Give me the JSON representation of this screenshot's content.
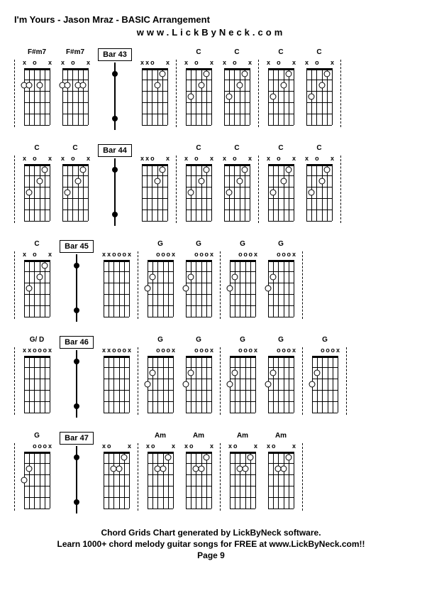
{
  "header": {
    "title": "I'm Yours - Jason Mraz - BASIC Arrangement",
    "url": "www.LickByNeck.com"
  },
  "footer": {
    "line1": "Chord Grids Chart generated by LickByNeck software.",
    "line2": "Learn 1000+ chord melody guitar songs for FREE at www.LickByNeck.com!!",
    "page": "Page 9"
  },
  "rows": [
    {
      "before": [
        {
          "name": "F#m7",
          "markers": [
            "x",
            "",
            "o",
            "",
            "",
            "x"
          ],
          "dots": [
            [
              0,
              2
            ],
            [
              1,
              2
            ],
            [
              3,
              2
            ]
          ]
        },
        {
          "name": "F#m7",
          "markers": [
            "x",
            "",
            "o",
            "",
            "",
            "x"
          ],
          "dots": [
            [
              0,
              2
            ],
            [
              1,
              2
            ],
            [
              3,
              2
            ],
            [
              4,
              2
            ]
          ]
        }
      ],
      "bar": "Bar 43",
      "after": [
        {
          "name": "",
          "markers": [
            "x",
            "x",
            "o",
            "",
            "",
            "x"
          ],
          "dots": [
            [
              3,
              2
            ],
            [
              4,
              1
            ]
          ]
        },
        {
          "name": "C",
          "markers": [
            "x",
            "",
            "o",
            "",
            "",
            "x"
          ],
          "dots": [
            [
              1,
              3
            ],
            [
              3,
              2
            ],
            [
              4,
              1
            ]
          ]
        },
        {
          "name": "C",
          "markers": [
            "x",
            "",
            "o",
            "",
            "",
            "x"
          ],
          "dots": [
            [
              1,
              3
            ],
            [
              3,
              2
            ],
            [
              4,
              1
            ]
          ]
        },
        {
          "name": "C",
          "markers": [
            "x",
            "",
            "o",
            "",
            "",
            "x"
          ],
          "dots": [
            [
              1,
              3
            ],
            [
              3,
              2
            ],
            [
              4,
              1
            ]
          ]
        },
        {
          "name": "C",
          "markers": [
            "x",
            "",
            "o",
            "",
            "",
            "x"
          ],
          "dots": [
            [
              1,
              3
            ],
            [
              3,
              2
            ],
            [
              4,
              1
            ]
          ]
        }
      ]
    },
    {
      "before": [
        {
          "name": "C",
          "markers": [
            "x",
            "",
            "o",
            "",
            "",
            "x"
          ],
          "dots": [
            [
              1,
              3
            ],
            [
              3,
              2
            ],
            [
              4,
              1
            ]
          ]
        },
        {
          "name": "C",
          "markers": [
            "x",
            "",
            "o",
            "",
            "",
            "x"
          ],
          "dots": [
            [
              1,
              3
            ],
            [
              3,
              2
            ],
            [
              4,
              1
            ]
          ]
        }
      ],
      "bar": "Bar 44",
      "after": [
        {
          "name": "",
          "markers": [
            "x",
            "x",
            "o",
            "",
            "",
            "x"
          ],
          "dots": [
            [
              3,
              2
            ],
            [
              4,
              1
            ]
          ]
        },
        {
          "name": "C",
          "markers": [
            "x",
            "",
            "o",
            "",
            "",
            "x"
          ],
          "dots": [
            [
              1,
              3
            ],
            [
              3,
              2
            ],
            [
              4,
              1
            ]
          ]
        },
        {
          "name": "C",
          "markers": [
            "x",
            "",
            "o",
            "",
            "",
            "x"
          ],
          "dots": [
            [
              1,
              3
            ],
            [
              3,
              2
            ],
            [
              4,
              1
            ]
          ]
        },
        {
          "name": "C",
          "markers": [
            "x",
            "",
            "o",
            "",
            "",
            "x"
          ],
          "dots": [
            [
              1,
              3
            ],
            [
              3,
              2
            ],
            [
              4,
              1
            ]
          ]
        },
        {
          "name": "C",
          "markers": [
            "x",
            "",
            "o",
            "",
            "",
            "x"
          ],
          "dots": [
            [
              1,
              3
            ],
            [
              3,
              2
            ],
            [
              4,
              1
            ]
          ]
        }
      ]
    },
    {
      "before": [
        {
          "name": "C",
          "markers": [
            "x",
            "",
            "o",
            "",
            "",
            "x"
          ],
          "dots": [
            [
              1,
              3
            ],
            [
              3,
              2
            ],
            [
              4,
              1
            ]
          ]
        }
      ],
      "bar": "Bar 45",
      "after": [
        {
          "name": "",
          "markers": [
            "x",
            "x",
            "o",
            "o",
            "o",
            "x"
          ],
          "dots": []
        },
        {
          "name": "G",
          "markers": [
            "",
            "",
            "o",
            "o",
            "o",
            "x"
          ],
          "dots": [
            [
              0,
              3
            ],
            [
              1,
              2
            ]
          ]
        },
        {
          "name": "G",
          "markers": [
            "",
            "",
            "o",
            "o",
            "o",
            "x"
          ],
          "dots": [
            [
              0,
              3
            ],
            [
              1,
              2
            ]
          ]
        },
        {
          "name": "G",
          "markers": [
            "",
            "",
            "o",
            "o",
            "o",
            "x"
          ],
          "dots": [
            [
              0,
              3
            ],
            [
              1,
              2
            ]
          ]
        },
        {
          "name": "G",
          "markers": [
            "",
            "",
            "o",
            "o",
            "o",
            "x"
          ],
          "dots": [
            [
              0,
              3
            ],
            [
              1,
              2
            ]
          ]
        }
      ]
    },
    {
      "before": [
        {
          "name": "G/ D",
          "markers": [
            "x",
            "x",
            "o",
            "o",
            "o",
            "x"
          ],
          "dots": []
        }
      ],
      "bar": "Bar 46",
      "after": [
        {
          "name": "",
          "markers": [
            "x",
            "x",
            "o",
            "o",
            "o",
            "x"
          ],
          "dots": []
        },
        {
          "name": "G",
          "markers": [
            "",
            "",
            "o",
            "o",
            "o",
            "x"
          ],
          "dots": [
            [
              0,
              3
            ],
            [
              1,
              2
            ]
          ]
        },
        {
          "name": "G",
          "markers": [
            "",
            "",
            "o",
            "o",
            "o",
            "x"
          ],
          "dots": [
            [
              0,
              3
            ],
            [
              1,
              2
            ]
          ]
        },
        {
          "name": "G",
          "markers": [
            "",
            "",
            "o",
            "o",
            "o",
            "x"
          ],
          "dots": [
            [
              0,
              3
            ],
            [
              1,
              2
            ]
          ]
        },
        {
          "name": "G",
          "markers": [
            "",
            "",
            "o",
            "o",
            "o",
            "x"
          ],
          "dots": [
            [
              0,
              3
            ],
            [
              1,
              2
            ]
          ]
        },
        {
          "name": "G",
          "markers": [
            "",
            "",
            "o",
            "o",
            "o",
            "x"
          ],
          "dots": [
            [
              0,
              3
            ],
            [
              1,
              2
            ]
          ]
        }
      ]
    },
    {
      "before": [
        {
          "name": "G",
          "markers": [
            "",
            "",
            "o",
            "o",
            "o",
            "x"
          ],
          "dots": [
            [
              0,
              3
            ],
            [
              1,
              2
            ]
          ]
        }
      ],
      "bar": "Bar 47",
      "after": [
        {
          "name": "",
          "markers": [
            "x",
            "o",
            "",
            "",
            "",
            "x"
          ],
          "dots": [
            [
              2,
              2
            ],
            [
              3,
              2
            ],
            [
              4,
              1
            ]
          ]
        },
        {
          "name": "Am",
          "markers": [
            "x",
            "o",
            "",
            "",
            "",
            "x"
          ],
          "dots": [
            [
              2,
              2
            ],
            [
              3,
              2
            ],
            [
              4,
              1
            ]
          ]
        },
        {
          "name": "Am",
          "markers": [
            "x",
            "o",
            "",
            "",
            "",
            "x"
          ],
          "dots": [
            [
              2,
              2
            ],
            [
              3,
              2
            ],
            [
              4,
              1
            ]
          ]
        },
        {
          "name": "Am",
          "markers": [
            "x",
            "o",
            "",
            "",
            "",
            "x"
          ],
          "dots": [
            [
              2,
              2
            ],
            [
              3,
              2
            ],
            [
              4,
              1
            ]
          ]
        },
        {
          "name": "Am",
          "markers": [
            "x",
            "o",
            "",
            "",
            "",
            "x"
          ],
          "dots": [
            [
              2,
              2
            ],
            [
              3,
              2
            ],
            [
              4,
              1
            ]
          ]
        }
      ]
    }
  ],
  "styling": {
    "strings": 6,
    "frets": 5,
    "string_spacing": 7.2,
    "fret_spacing": 16,
    "dot_color": "#ffffff",
    "dot_border": "#000000",
    "nut_height": 3
  }
}
